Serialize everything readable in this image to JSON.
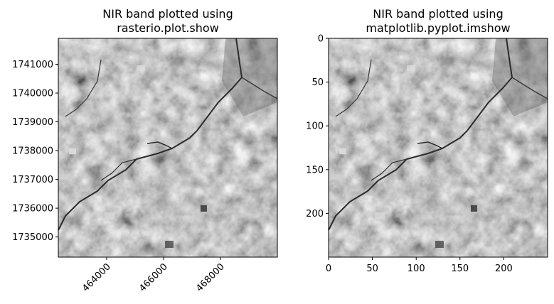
{
  "figure": {
    "panels": [
      {
        "title_line1": "NIR band plotted using",
        "title_line2": "rasterio.plot.show"
      },
      {
        "title_line1": "NIR band plotted using",
        "title_line2": "matplotlib.pyplot.imshow"
      }
    ]
  },
  "chart_data": [
    {
      "type": "heatmap",
      "title": "NIR band plotted using rasterio.plot.show",
      "colormap": "gray",
      "xlabel": "",
      "ylabel": "",
      "xlim": [
        462300,
        470000
      ],
      "ylim": [
        1734300,
        1741900
      ],
      "x_ticks": [
        464000,
        466000,
        468000
      ],
      "x_tick_labels": [
        "464000",
        "466000",
        "468000"
      ],
      "x_tick_rotation": 45,
      "y_ticks": [
        1735000,
        1736000,
        1737000,
        1738000,
        1739000,
        1740000,
        1741000
      ],
      "y_tick_labels": [
        "1735000",
        "1736000",
        "1737000",
        "1738000",
        "1739000",
        "1740000",
        "1741000"
      ],
      "y_inverted": false
    },
    {
      "type": "heatmap",
      "title": "NIR band plotted using matplotlib.pyplot.imshow",
      "colormap": "gray",
      "xlabel": "",
      "ylabel": "",
      "xlim": [
        0,
        250
      ],
      "ylim": [
        250,
        0
      ],
      "x_ticks": [
        0,
        50,
        100,
        150,
        200
      ],
      "x_tick_labels": [
        "0",
        "50",
        "100",
        "150",
        "200"
      ],
      "y_ticks": [
        0,
        50,
        100,
        150,
        200
      ],
      "y_tick_labels": [
        "0",
        "50",
        "100",
        "150",
        "200"
      ],
      "y_inverted": true
    }
  ]
}
